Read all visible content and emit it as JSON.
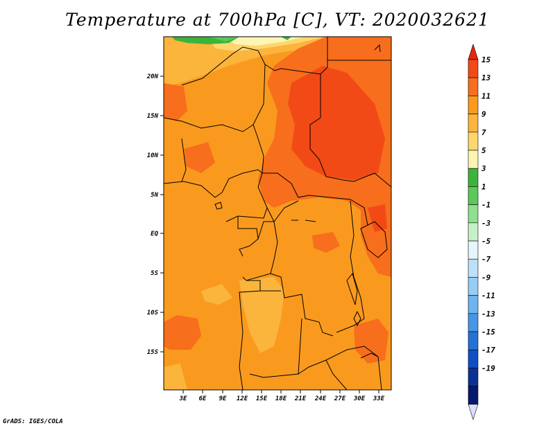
{
  "title": "Temperature at 700hPa [C], VT: 2020032621",
  "credit": "GrADS: IGES/COLA",
  "map": {
    "lat_labels": [
      "20N",
      "15N",
      "10N",
      "5N",
      "EQ",
      "5S",
      "10S",
      "15S"
    ],
    "lon_labels": [
      "3E",
      "6E",
      "9E",
      "12E",
      "15E",
      "18E",
      "21E",
      "24E",
      "27E",
      "30E",
      "33E"
    ]
  },
  "colorbar": {
    "labels": [
      "15",
      "13",
      "11",
      "9",
      "7",
      "5",
      "3",
      "1",
      "-1",
      "-3",
      "-5",
      "-7",
      "-9",
      "-11",
      "-13",
      "-15",
      "-17",
      "-19"
    ],
    "colors": [
      "#e8260c",
      "#f24a16",
      "#f76e1c",
      "#f99a1e",
      "#fbb43c",
      "#fdd66e",
      "#fff5b2",
      "#3cb43c",
      "#5ac85a",
      "#8ee08e",
      "#c8f0c8",
      "#e6f5ff",
      "#bde0fa",
      "#96cdf5",
      "#6eb4f0",
      "#4696e6",
      "#2373d7",
      "#0f4fc3",
      "#0a3296",
      "#06186e",
      "#ddddff"
    ]
  }
}
